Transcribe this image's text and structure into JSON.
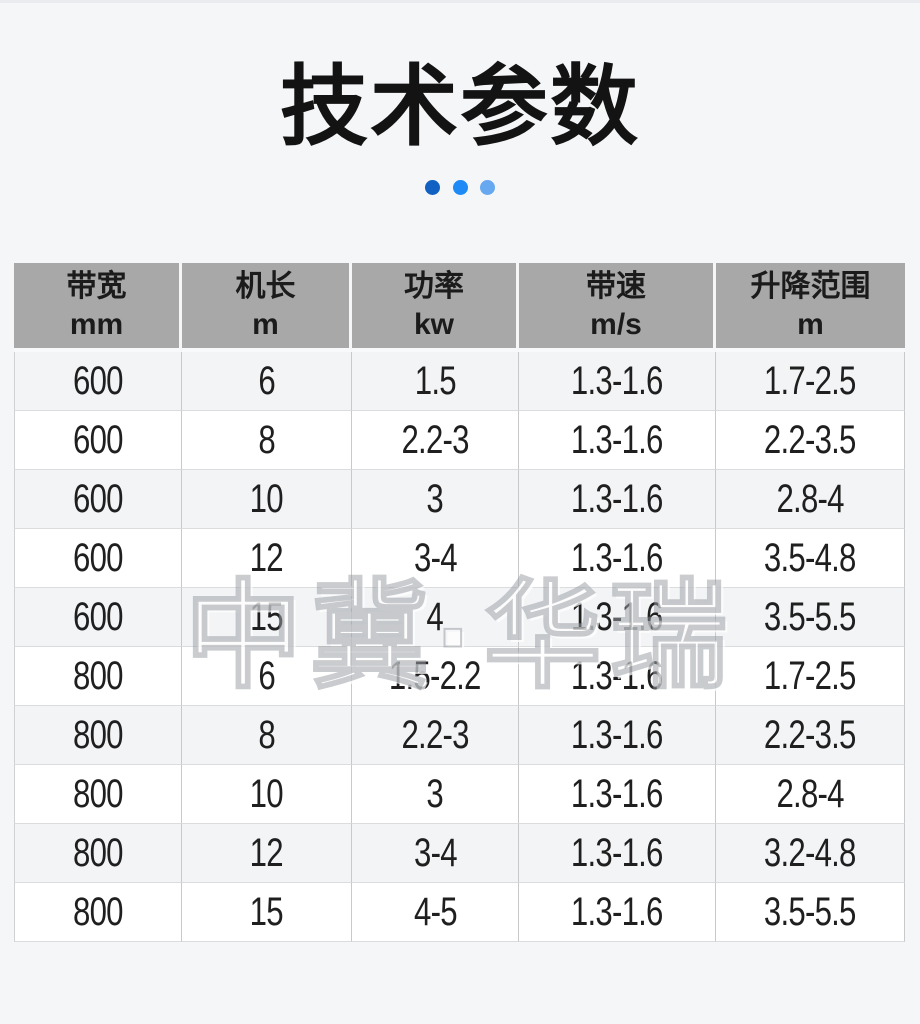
{
  "page": {
    "title": "技术参数",
    "watermark": "中冀·华瑞"
  },
  "decoration": {
    "dots": [
      {
        "name": "dot-dark-blue",
        "color": "#1061c1"
      },
      {
        "name": "dot-blue",
        "color": "#1d8af5"
      },
      {
        "name": "dot-light-blue",
        "color": "#66a9f0"
      }
    ]
  },
  "colors": {
    "page_background": "#f5f6f8",
    "header_background": "#a8a8a8",
    "row_alternate": "#f3f4f6",
    "row_plain": "#ffffff",
    "cell_border_vertical": "#c7c9cb",
    "cell_border_horizontal": "#dadcde",
    "title_text": "#131313"
  },
  "table": {
    "headers": [
      {
        "line1": "带宽",
        "line2": "mm"
      },
      {
        "line1": "机长",
        "line2": "m"
      },
      {
        "line1": "功率",
        "line2": "kw"
      },
      {
        "line1": "带速",
        "line2": "m/s"
      },
      {
        "line1": "升降范围",
        "line2": "m"
      }
    ],
    "rows": [
      [
        "600",
        "6",
        "1.5",
        "1.3-1.6",
        "1.7-2.5"
      ],
      [
        "600",
        "8",
        "2.2-3",
        "1.3-1.6",
        "2.2-3.5"
      ],
      [
        "600",
        "10",
        "3",
        "1.3-1.6",
        "2.8-4"
      ],
      [
        "600",
        "12",
        "3-4",
        "1.3-1.6",
        "3.5-4.8"
      ],
      [
        "600",
        "15",
        "4",
        "1.3-1.6",
        "3.5-5.5"
      ],
      [
        "800",
        "6",
        "1.5-2.2",
        "1.3-1.6",
        "1.7-2.5"
      ],
      [
        "800",
        "8",
        "2.2-3",
        "1.3-1.6",
        "2.2-3.5"
      ],
      [
        "800",
        "10",
        "3",
        "1.3-1.6",
        "2.8-4"
      ],
      [
        "800",
        "12",
        "3-4",
        "1.3-1.6",
        "3.2-4.8"
      ],
      [
        "800",
        "15",
        "4-5",
        "1.3-1.6",
        "3.5-5.5"
      ]
    ]
  }
}
